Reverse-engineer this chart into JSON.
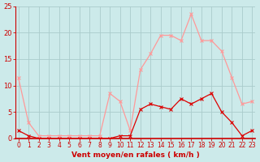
{
  "hours": [
    0,
    1,
    2,
    3,
    4,
    5,
    6,
    7,
    8,
    9,
    10,
    11,
    12,
    13,
    14,
    15,
    16,
    17,
    18,
    19,
    20,
    21,
    22,
    23
  ],
  "avg_wind": [
    1.5,
    0.5,
    0.0,
    0.0,
    0.0,
    0.0,
    0.0,
    0.0,
    0.0,
    0.0,
    0.5,
    0.5,
    5.5,
    6.5,
    6.0,
    5.5,
    7.5,
    6.5,
    7.5,
    8.5,
    5.0,
    3.0,
    0.5,
    1.5
  ],
  "gust_wind": [
    11.5,
    3.0,
    0.5,
    0.5,
    0.5,
    0.5,
    0.5,
    0.5,
    0.5,
    8.5,
    7.0,
    1.5,
    13.0,
    16.0,
    19.5,
    19.5,
    18.5,
    23.5,
    18.5,
    18.5,
    16.5,
    11.5,
    6.5,
    7.0
  ],
  "ylim": [
    0,
    25
  ],
  "yticks": [
    0,
    5,
    10,
    15,
    20,
    25
  ],
  "xlabel": "Vent moyen/en rafales ( km/h )",
  "bg_color": "#cceaea",
  "grid_color": "#aacccc",
  "avg_color": "#dd0000",
  "gust_color": "#ff9999",
  "axis_color": "#cc0000",
  "label_color": "#cc0000",
  "tick_fontsize": 5.5,
  "xlabel_fontsize": 6.5,
  "marker_size": 2.5,
  "linewidth": 0.9
}
